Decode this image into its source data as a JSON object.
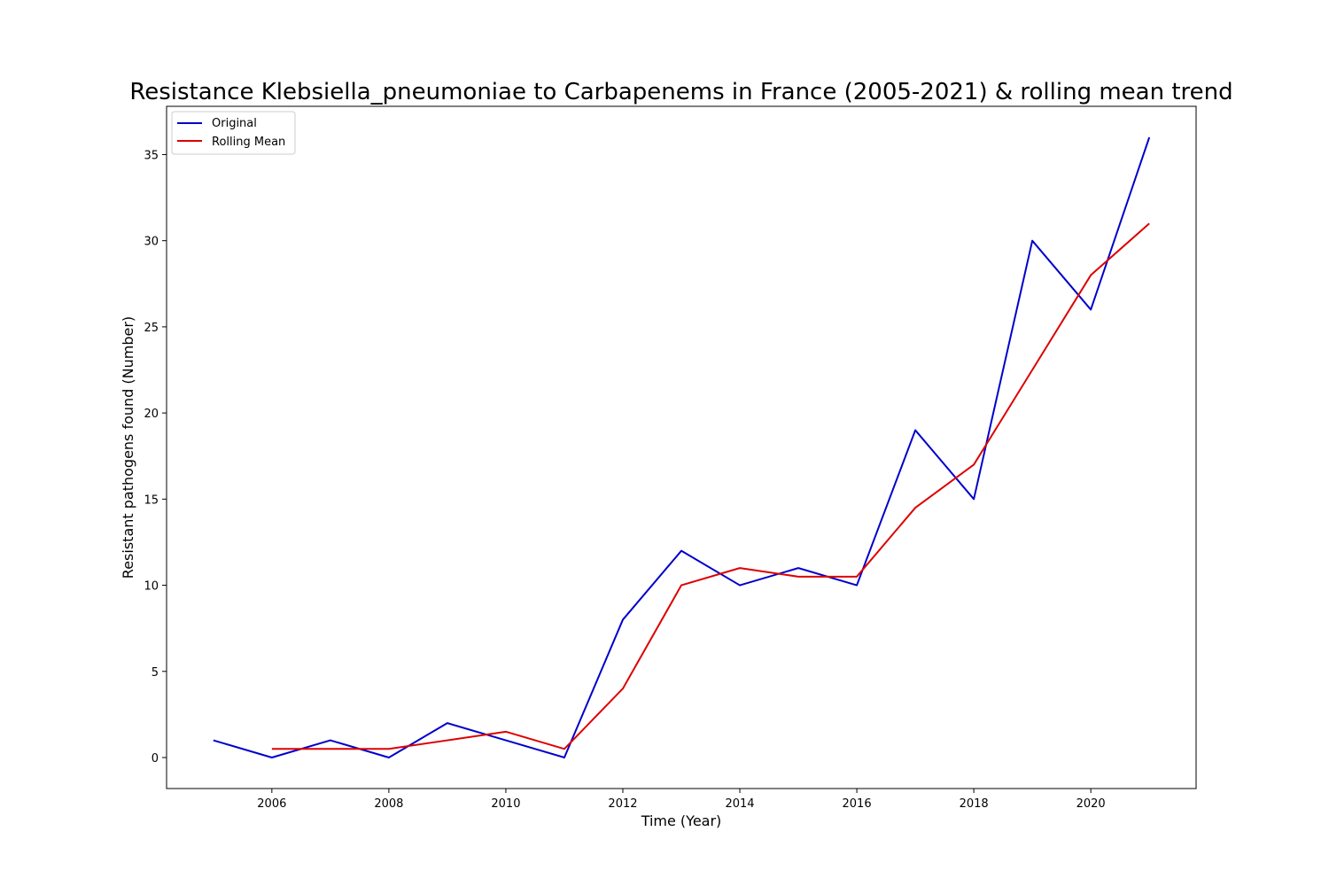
{
  "chart_data": {
    "type": "line",
    "title": "Resistance Klebsiella_pneumoniae to Carbapenems in France (2005-2021) & rolling mean trend",
    "xlabel": "Time (Year)",
    "ylabel": "Resistant pathogens found (Number)",
    "xlim": [
      2004.2,
      2021.8
    ],
    "ylim": [
      -1.8,
      37.8
    ],
    "x_ticks": [
      2006,
      2008,
      2010,
      2012,
      2014,
      2016,
      2018,
      2020
    ],
    "y_ticks": [
      0,
      5,
      10,
      15,
      20,
      25,
      30,
      35
    ],
    "grid": false,
    "legend_position": "upper-left",
    "series": [
      {
        "name": "Original",
        "color": "#0000cc",
        "x": [
          2005,
          2006,
          2007,
          2008,
          2009,
          2010,
          2011,
          2012,
          2013,
          2014,
          2015,
          2016,
          2017,
          2018,
          2019,
          2020,
          2021
        ],
        "values": [
          1,
          0,
          1,
          0,
          2,
          1,
          0,
          8,
          12,
          10,
          11,
          10,
          19,
          15,
          30,
          26,
          36
        ]
      },
      {
        "name": "Rolling Mean",
        "color": "#dd0000",
        "x": [
          2006,
          2007,
          2008,
          2009,
          2010,
          2011,
          2012,
          2013,
          2014,
          2015,
          2016,
          2017,
          2018,
          2019,
          2020,
          2021
        ],
        "values": [
          0.5,
          0.5,
          0.5,
          1,
          1.5,
          0.5,
          4,
          10,
          11,
          10.5,
          10.5,
          14.5,
          17,
          22.5,
          28,
          31
        ]
      }
    ]
  }
}
